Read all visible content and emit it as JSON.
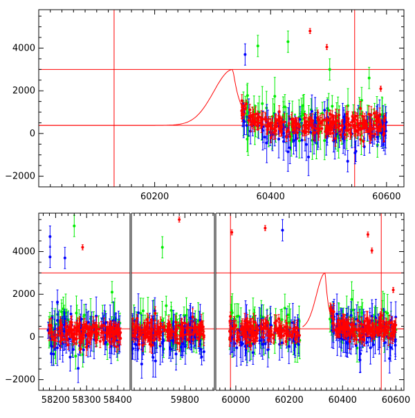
{
  "colors": {
    "red": "#ff0000",
    "green": "#00ee00",
    "blue": "#0000ff",
    "frame": "#000000"
  },
  "chart_data": [
    {
      "type": "scatter",
      "title": "",
      "xlabel": "",
      "ylabel": "",
      "xlim": [
        60000,
        60630
      ],
      "ylim": [
        -2500,
        5800
      ],
      "xticks": [
        60200,
        60400,
        60600
      ],
      "yticks": [
        -2000,
        0,
        2000,
        4000
      ],
      "error_bars": true,
      "reference_lines": {
        "horizontal": [
          3000,
          380
        ],
        "vertical": [
          60130,
          60545
        ]
      },
      "model_curve": {
        "color": "red",
        "baseline": 380,
        "peak": 3000,
        "peak_x": 60335,
        "rise_width_days": 33,
        "decay_days": 14
      },
      "observation_window": [
        60350,
        60600
      ],
      "series": [
        {
          "color": "red",
          "points_approx": 260
        },
        {
          "color": "blue",
          "points_approx": 120
        },
        {
          "color": "green",
          "points_approx": 90
        }
      ],
      "annotated_outliers": [
        {
          "x": 60468,
          "y": 4800,
          "color": "red"
        },
        {
          "x": 60497,
          "y": 4050,
          "color": "red"
        },
        {
          "x": 60356,
          "y": 3700,
          "color": "blue"
        },
        {
          "x": 60378,
          "y": 4100,
          "color": "green"
        },
        {
          "x": 60430,
          "y": 4300,
          "color": "green"
        },
        {
          "x": 60502,
          "y": 3000,
          "color": "green"
        },
        {
          "x": 60590,
          "y": 2100,
          "color": "red"
        },
        {
          "x": 60570,
          "y": 2600,
          "color": "green"
        },
        {
          "x": 60533,
          "y": -1300,
          "color": "blue"
        }
      ]
    },
    {
      "type": "scatter",
      "title": "",
      "xlabel": "",
      "ylabel": "",
      "ylim": [
        -2500,
        5800
      ],
      "yticks": [
        -2000,
        0,
        2000,
        4000
      ],
      "error_bars": true,
      "reference_lines": {
        "horizontal": [
          3000,
          380
        ]
      },
      "segments": [
        {
          "xlim": [
            58150,
            58440
          ],
          "xticks": [
            58200,
            58300,
            58400
          ],
          "observation_window": [
            58175,
            58410
          ],
          "points_approx": 300
        },
        {
          "xlim": [
            59610,
            59905
          ],
          "xticks": [
            59800
          ],
          "observation_window": [
            59612,
            59868
          ],
          "points_approx": 300
        },
        {
          "xlim": [
            59925,
            60630
          ],
          "xticks": [
            60000,
            60200,
            60400,
            60600
          ],
          "observation_window_1": [
            59975,
            60240
          ],
          "observation_window_2": [
            60350,
            60600
          ],
          "points_approx": 420,
          "vertical_lines": [
            59980,
            60545
          ],
          "model_curve": {
            "baseline": 380,
            "peak": 3000,
            "peak_x": 60335,
            "rise_width_days": 33,
            "decay_days": 14
          }
        }
      ],
      "series": [
        {
          "color": "red"
        },
        {
          "color": "blue"
        },
        {
          "color": "green"
        }
      ],
      "annotated_outliers": [
        {
          "x": 58182,
          "y": 4700,
          "color": "blue"
        },
        {
          "x": 58182,
          "y": 3750,
          "color": "blue"
        },
        {
          "x": 58230,
          "y": 3700,
          "color": "blue"
        },
        {
          "x": 58287,
          "y": 4200,
          "color": "red"
        },
        {
          "x": 58260,
          "y": 5200,
          "color": "green"
        },
        {
          "x": 58382,
          "y": 2100,
          "color": "green"
        },
        {
          "x": 59780,
          "y": 5500,
          "color": "red"
        },
        {
          "x": 59720,
          "y": 4200,
          "color": "green"
        },
        {
          "x": 59985,
          "y": 4900,
          "color": "red"
        },
        {
          "x": 60110,
          "y": 5100,
          "color": "red"
        },
        {
          "x": 60175,
          "y": 5000,
          "color": "blue"
        },
        {
          "x": 60495,
          "y": 4800,
          "color": "red"
        },
        {
          "x": 60510,
          "y": 4050,
          "color": "red"
        },
        {
          "x": 60590,
          "y": 2200,
          "color": "red"
        }
      ]
    }
  ]
}
